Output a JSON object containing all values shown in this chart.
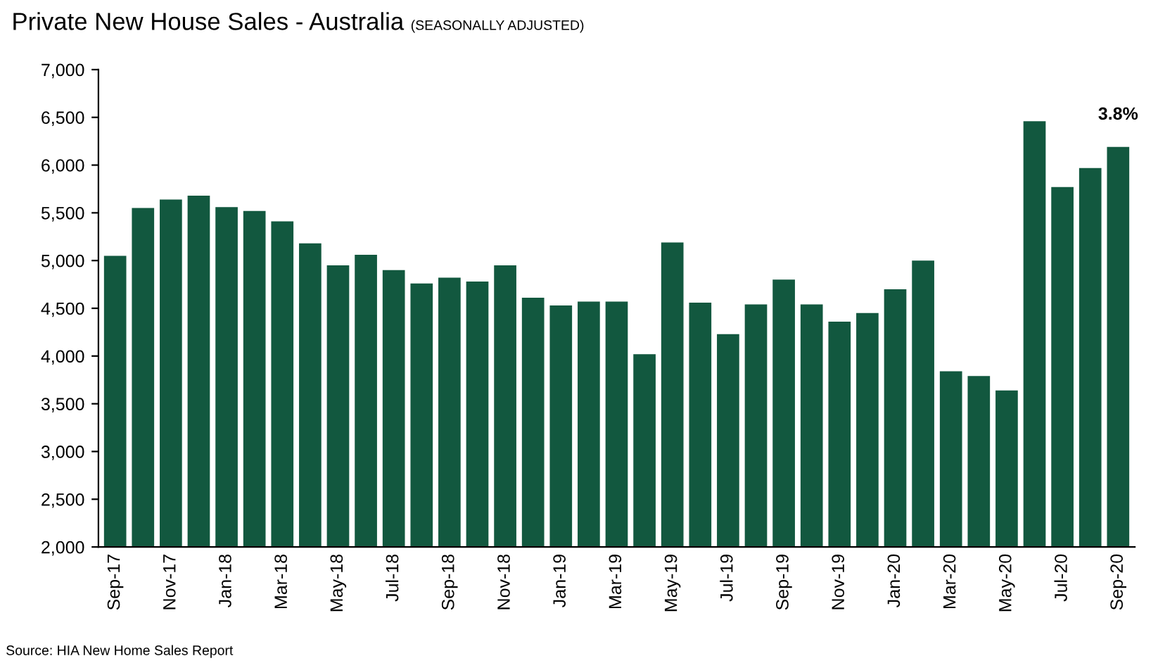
{
  "chart_data": {
    "type": "bar",
    "title": "Private New House Sales - Australia",
    "subtitle": "(SEASONALLY ADJUSTED)",
    "categories": [
      "Sep-17",
      null,
      "Nov-17",
      null,
      "Jan-18",
      null,
      "Mar-18",
      null,
      "May-18",
      null,
      "Jul-18",
      null,
      "Sep-18",
      null,
      "Nov-18",
      null,
      "Jan-19",
      null,
      "Mar-19",
      null,
      "May-19",
      null,
      "Jul-19",
      null,
      "Sep-19",
      null,
      "Nov-19",
      null,
      "Jan-20",
      null,
      "Mar-20",
      null,
      "May-20",
      null,
      "Jul-20",
      null,
      "Sep-20"
    ],
    "values": [
      5050,
      5550,
      5640,
      5680,
      5560,
      5520,
      5410,
      5180,
      4950,
      5060,
      4900,
      4760,
      4820,
      4780,
      4950,
      4610,
      4530,
      4570,
      4570,
      4020,
      5190,
      4560,
      4230,
      4540,
      4800,
      4540,
      4360,
      4450,
      4700,
      5000,
      3840,
      3790,
      3640,
      6460,
      5770,
      5970,
      6190
    ],
    "color": "#12583f",
    "ylim": [
      2000,
      7000
    ],
    "yticks": [
      {
        "value": 2000,
        "label": "2,000"
      },
      {
        "value": 2500,
        "label": "2,500"
      },
      {
        "value": 3000,
        "label": "3,000"
      },
      {
        "value": 3500,
        "label": "3,500"
      },
      {
        "value": 4000,
        "label": "4,000"
      },
      {
        "value": 4500,
        "label": "4,500"
      },
      {
        "value": 5000,
        "label": "5,000"
      },
      {
        "value": 5500,
        "label": "5,500"
      },
      {
        "value": 6000,
        "label": "6,000"
      },
      {
        "value": 6500,
        "label": "6,500"
      },
      {
        "value": 7000,
        "label": "7,000"
      }
    ],
    "grid": false,
    "legend": false,
    "annotations": [
      {
        "text": "3.8%",
        "x": "Sep-20",
        "y": 6190
      },
      "Source: HIA New Home Sales Report"
    ]
  }
}
